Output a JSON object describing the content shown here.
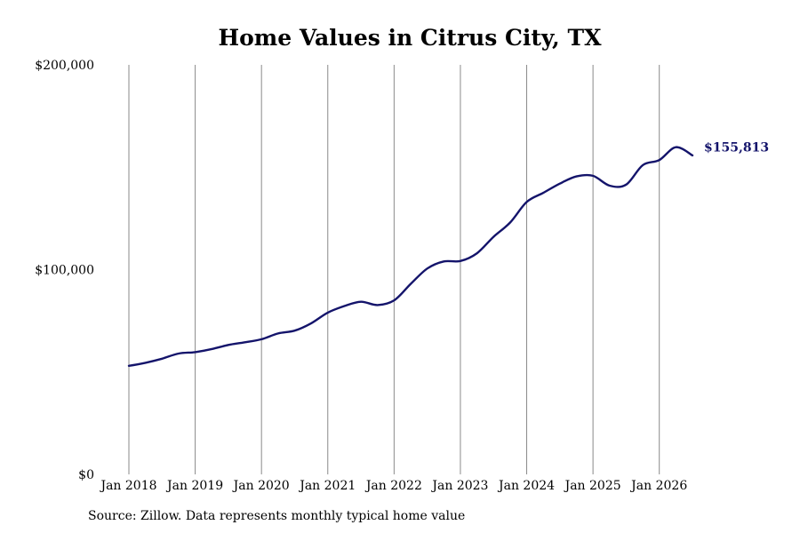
{
  "chart_data": {
    "type": "line",
    "title": "Home Values in Citrus City, TX",
    "xlabel": "",
    "ylabel": "",
    "ylim": [
      0,
      200000
    ],
    "y_ticks": [
      {
        "value": 0,
        "label": "$0"
      },
      {
        "value": 100000,
        "label": "$100,000"
      },
      {
        "value": 200000,
        "label": "$200,000"
      }
    ],
    "x_range": [
      "2018-01",
      "2026-07"
    ],
    "x_ticks": [
      {
        "date": "2018-01",
        "label": "Jan 2018"
      },
      {
        "date": "2019-01",
        "label": "Jan 2019"
      },
      {
        "date": "2020-01",
        "label": "Jan 2020"
      },
      {
        "date": "2021-01",
        "label": "Jan 2021"
      },
      {
        "date": "2022-01",
        "label": "Jan 2022"
      },
      {
        "date": "2023-01",
        "label": "Jan 2023"
      },
      {
        "date": "2024-01",
        "label": "Jan 2024"
      },
      {
        "date": "2025-01",
        "label": "Jan 2025"
      },
      {
        "date": "2026-01",
        "label": "Jan 2026"
      }
    ],
    "grid": "vertical",
    "line_color": "#14146b",
    "series": [
      {
        "name": "",
        "points": [
          {
            "x": "2018-01",
            "y": 53000
          },
          {
            "x": "2018-04",
            "y": 54500
          },
          {
            "x": "2018-07",
            "y": 56500
          },
          {
            "x": "2018-10",
            "y": 59000
          },
          {
            "x": "2019-01",
            "y": 59700
          },
          {
            "x": "2019-04",
            "y": 61200
          },
          {
            "x": "2019-07",
            "y": 63200
          },
          {
            "x": "2019-10",
            "y": 64500
          },
          {
            "x": "2020-01",
            "y": 66000
          },
          {
            "x": "2020-04",
            "y": 68800
          },
          {
            "x": "2020-07",
            "y": 70200
          },
          {
            "x": "2020-10",
            "y": 73800
          },
          {
            "x": "2021-01",
            "y": 79000
          },
          {
            "x": "2021-04",
            "y": 82200
          },
          {
            "x": "2021-07",
            "y": 84300
          },
          {
            "x": "2021-10",
            "y": 82700
          },
          {
            "x": "2022-01",
            "y": 85000
          },
          {
            "x": "2022-04",
            "y": 93000
          },
          {
            "x": "2022-07",
            "y": 100500
          },
          {
            "x": "2022-10",
            "y": 104000
          },
          {
            "x": "2023-01",
            "y": 104200
          },
          {
            "x": "2023-04",
            "y": 108000
          },
          {
            "x": "2023-07",
            "y": 116000
          },
          {
            "x": "2023-10",
            "y": 123000
          },
          {
            "x": "2024-01",
            "y": 133000
          },
          {
            "x": "2024-04",
            "y": 137500
          },
          {
            "x": "2024-07",
            "y": 142000
          },
          {
            "x": "2024-10",
            "y": 145500
          },
          {
            "x": "2025-01",
            "y": 145800
          },
          {
            "x": "2025-04",
            "y": 141000
          },
          {
            "x": "2025-07",
            "y": 141500
          },
          {
            "x": "2025-10",
            "y": 151000
          },
          {
            "x": "2026-01",
            "y": 153500
          },
          {
            "x": "2026-04",
            "y": 159800
          },
          {
            "x": "2026-07",
            "y": 155813
          }
        ]
      }
    ],
    "end_label": "$155,813",
    "source": "Source: Zillow. Data represents monthly typical home value"
  }
}
